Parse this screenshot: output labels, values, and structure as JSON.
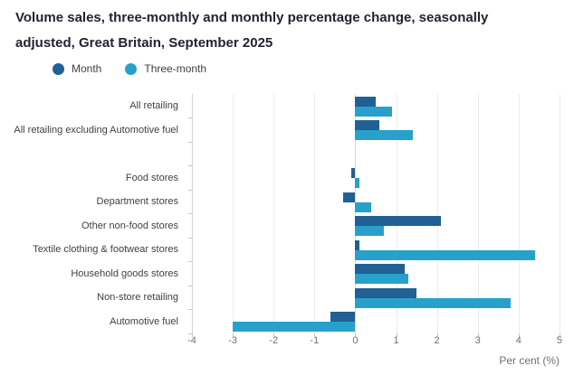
{
  "title": {
    "line1": "Volume sales, three-monthly and monthly percentage change, seasonally",
    "line2": "adjusted, Great Britain, September 2025"
  },
  "chart_data": {
    "type": "bar",
    "orientation": "horizontal",
    "title": "Volume sales, three-monthly and monthly percentage change, seasonally adjusted, Great Britain, September 2025",
    "categories": [
      "All retailing",
      "All retailing excluding Automotive fuel",
      "Food stores",
      "Department stores",
      "Other non-food stores",
      "Textile clothing & footwear stores",
      "Household goods stores",
      "Non-store retailing",
      "Automotive fuel"
    ],
    "gap_after": "All retailing excluding Automotive fuel",
    "series": [
      {
        "name": "Month",
        "color": "#206095",
        "values": [
          0.5,
          0.6,
          -0.1,
          -0.3,
          2.1,
          0.1,
          1.2,
          1.5,
          -0.6
        ]
      },
      {
        "name": "Three-month",
        "color": "#27a0cc",
        "values": [
          0.9,
          1.4,
          0.1,
          0.4,
          0.7,
          4.4,
          1.3,
          3.8,
          -3.0
        ]
      }
    ],
    "xticks": [
      -4,
      -3,
      -2,
      -1,
      0,
      1,
      2,
      3,
      4,
      5
    ],
    "xlim": [
      -4,
      5.3
    ],
    "xlabel": "Per cent (%)",
    "legend_position": "top-left",
    "grid": true
  },
  "colors": {
    "month": "#206095",
    "three_month": "#27a0cc",
    "gridline": "#ebebeb",
    "axis": "#c4c4c4",
    "title_text": "#232233",
    "label_text": "#414042",
    "tick_text": "#707071"
  }
}
